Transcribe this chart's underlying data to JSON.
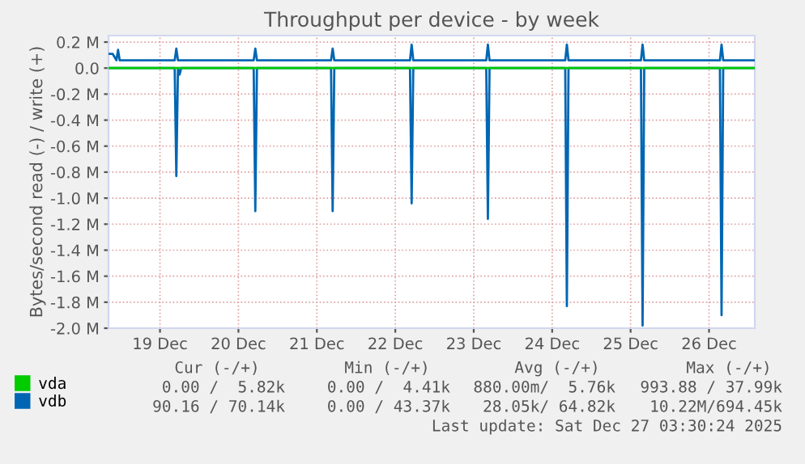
{
  "chart_data": {
    "type": "line",
    "title": "Throughput per device - by week",
    "ylabel": "Bytes/second read (-) / write (+)",
    "xlim": [
      "2025-12-18T20:15",
      "2025-12-27T02:00"
    ],
    "xticks": [
      {
        "value": "2025-12-19T12:00",
        "label": "19 Dec"
      },
      {
        "value": "2025-12-20T12:00",
        "label": "20 Dec"
      },
      {
        "value": "2025-12-21T12:00",
        "label": "21 Dec"
      },
      {
        "value": "2025-12-22T12:00",
        "label": "22 Dec"
      },
      {
        "value": "2025-12-23T12:00",
        "label": "23 Dec"
      },
      {
        "value": "2025-12-24T12:00",
        "label": "24 Dec"
      },
      {
        "value": "2025-12-25T12:00",
        "label": "25 Dec"
      },
      {
        "value": "2025-12-26T12:00",
        "label": "26 Dec"
      }
    ],
    "ylim": [
      -2000000,
      250000
    ],
    "yticks": [
      {
        "value": 200000,
        "label": "0.2 M"
      },
      {
        "value": 0,
        "label": "0.0"
      },
      {
        "value": -200000,
        "label": "-0.2 M"
      },
      {
        "value": -400000,
        "label": "-0.4 M"
      },
      {
        "value": -600000,
        "label": "-0.6 M"
      },
      {
        "value": -800000,
        "label": "-0.8 M"
      },
      {
        "value": -1000000,
        "label": "-1.0 M"
      },
      {
        "value": -1200000,
        "label": "-1.2 M"
      },
      {
        "value": -1400000,
        "label": "-1.4 M"
      },
      {
        "value": -1600000,
        "label": "-1.6 M"
      },
      {
        "value": -1800000,
        "label": "-1.8 M"
      },
      {
        "value": -2000000,
        "label": "-2.0 M"
      }
    ],
    "grid": true,
    "legend": "bottom left",
    "series": [
      {
        "name": "vda",
        "color": "#00cc00",
        "x": [
          "2025-12-18T20:15",
          "2025-12-27T02:00"
        ],
        "values": [
          0,
          0
        ]
      },
      {
        "color": "#0066b3",
        "x": [
          "2025-12-18T20:15",
          "2025-12-19T16:30",
          "2025-12-19T17:00",
          "2025-12-19T17:30",
          "2025-12-19T18:00",
          "2025-12-19T18:30",
          "2025-12-20T16:40",
          "2025-12-20T17:10",
          "2025-12-20T17:40",
          "2025-12-21T16:20",
          "2025-12-21T16:50",
          "2025-12-21T17:20",
          "2025-12-22T16:30",
          "2025-12-22T17:00",
          "2025-12-22T17:30",
          "2025-12-23T15:50",
          "2025-12-23T16:20",
          "2025-12-23T16:50",
          "2025-12-24T16:00",
          "2025-12-24T16:30",
          "2025-12-24T17:00",
          "2025-12-25T15:10",
          "2025-12-25T15:40",
          "2025-12-25T16:10",
          "2025-12-26T15:20",
          "2025-12-26T15:50",
          "2025-12-26T16:20",
          "2025-12-27T02:00"
        ],
        "values": [
          0,
          0,
          -830000,
          0,
          -50000,
          0,
          0,
          -1100000,
          0,
          0,
          -1100000,
          0,
          0,
          -1040000,
          0,
          0,
          -1160000,
          0,
          0,
          -1830000,
          0,
          0,
          -1980000,
          0,
          0,
          -1900000,
          0,
          0
        ]
      },
      {
        "name": "vdb",
        "color": "#0066b3",
        "x": [
          "2025-12-18T20:15",
          "2025-12-18T21:30",
          "2025-12-18T22:40",
          "2025-12-18T23:10",
          "2025-12-18T23:40",
          "2025-12-19T16:30",
          "2025-12-19T17:00",
          "2025-12-19T17:30",
          "2025-12-20T16:40",
          "2025-12-20T17:10",
          "2025-12-20T17:40",
          "2025-12-21T16:20",
          "2025-12-21T16:50",
          "2025-12-21T17:20",
          "2025-12-22T16:30",
          "2025-12-22T17:00",
          "2025-12-22T17:30",
          "2025-12-23T15:50",
          "2025-12-23T16:20",
          "2025-12-23T16:50",
          "2025-12-24T16:00",
          "2025-12-24T16:30",
          "2025-12-24T17:00",
          "2025-12-25T15:10",
          "2025-12-25T15:40",
          "2025-12-25T16:10",
          "2025-12-26T15:20",
          "2025-12-26T15:50",
          "2025-12-26T16:20",
          "2025-12-27T02:00"
        ],
        "values": [
          110000,
          110000,
          60000,
          140000,
          60000,
          60000,
          150000,
          60000,
          60000,
          150000,
          60000,
          60000,
          150000,
          60000,
          60000,
          180000,
          60000,
          60000,
          180000,
          60000,
          60000,
          180000,
          60000,
          60000,
          180000,
          60000,
          60000,
          180000,
          60000,
          60000
        ]
      }
    ],
    "annotations": [
      "Cur (-/+)",
      "Min (-/+)",
      "Avg (-/+)",
      "Max (-/+)",
      "0.00 /  5.82k",
      "0.00 /  4.41k",
      "880.00m/  5.76k",
      "993.88 / 37.99k",
      "90.16 / 70.14k",
      "0.00 / 43.37k",
      "28.05k/ 64.82k",
      "10.22M/694.45k",
      "Last update: Sat Dec 27 03:30:24 2025"
    ]
  }
}
